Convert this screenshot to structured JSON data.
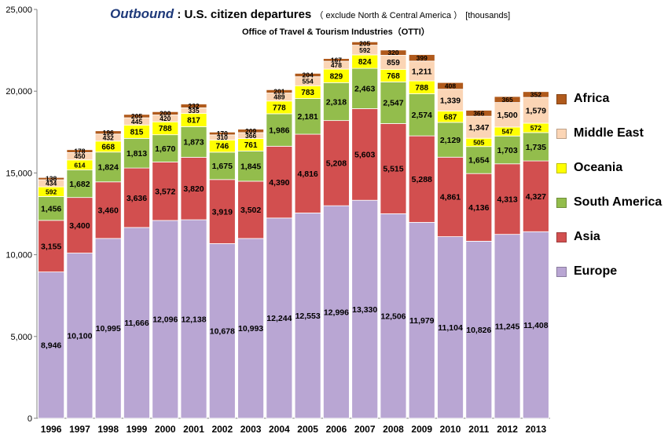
{
  "title": {
    "accent": "Outbound",
    "separator": ":",
    "main": "U.S. citizen departures",
    "note": "（ exclude North & Central America ）",
    "unit": "[thousands]",
    "subtitle": "Office of Travel & Tourism Industries（OTTI）"
  },
  "chart_data": {
    "type": "stacked-bar",
    "title": "Outbound : U.S. citizen departures (exclude North & Central America) [thousands]",
    "subtitle": "Office of Travel & Tourism Industries (OTTI)",
    "xlabel": "",
    "ylabel": "",
    "ylim": [
      0,
      25000
    ],
    "yticks": [
      0,
      5000,
      10000,
      15000,
      20000,
      25000
    ],
    "ytick_labels": [
      "0",
      "5,000",
      "10,000",
      "15,000",
      "20,000",
      "25,000"
    ],
    "grid": false,
    "legend_position": "right",
    "categories": [
      "1996",
      "1997",
      "1998",
      "1999",
      "2000",
      "2001",
      "2002",
      "2003",
      "2004",
      "2005",
      "2006",
      "2007",
      "2008",
      "2009",
      "2010",
      "2011",
      "2012",
      "2013"
    ],
    "series": [
      {
        "name": "Europe",
        "color": "#b9a6d3",
        "label_color": "#000000",
        "values": [
          8946,
          10100,
          10995,
          11666,
          12096,
          12138,
          10678,
          10993,
          12244,
          12553,
          12996,
          13330,
          12506,
          11979,
          11104,
          10826,
          11245,
          11408
        ]
      },
      {
        "name": "Asia",
        "color": "#d24f4f",
        "label_color": "#000000",
        "values": [
          3155,
          3400,
          3460,
          3636,
          3572,
          3820,
          3919,
          3502,
          4390,
          4816,
          5208,
          5603,
          5515,
          5288,
          4861,
          4136,
          4313,
          4327
        ]
      },
      {
        "name": "South America",
        "color": "#93bd4c",
        "label_color": "#000000",
        "values": [
          1456,
          1682,
          1824,
          1813,
          1670,
          1873,
          1675,
          1845,
          1986,
          2181,
          2318,
          2463,
          2547,
          2574,
          2129,
          1654,
          1703,
          1735
        ]
      },
      {
        "name": "Oceania",
        "color": "#ffff00",
        "label_color": "#000000",
        "values": [
          592,
          614,
          668,
          815,
          788,
          817,
          746,
          761,
          778,
          783,
          829,
          824,
          768,
          788,
          687,
          505,
          547,
          572
        ]
      },
      {
        "name": "Middle East",
        "color": "#fbd5b5",
        "label_color": "#000000",
        "values": [
          434,
          450,
          432,
          445,
          420,
          335,
          310,
          366,
          489,
          554,
          478,
          592,
          859,
          1211,
          1339,
          1347,
          1500,
          1579
        ]
      },
      {
        "name": "Africa",
        "color": "#b05a1c",
        "label_color": "#000000",
        "values": [
          138,
          178,
          196,
          205,
          200,
          232,
          170,
          209,
          201,
          204,
          167,
          205,
          320,
          399,
          408,
          366,
          365,
          352
        ]
      }
    ],
    "legend_order": [
      "Africa",
      "Middle East",
      "Oceania",
      "South America",
      "Asia",
      "Europe"
    ]
  }
}
